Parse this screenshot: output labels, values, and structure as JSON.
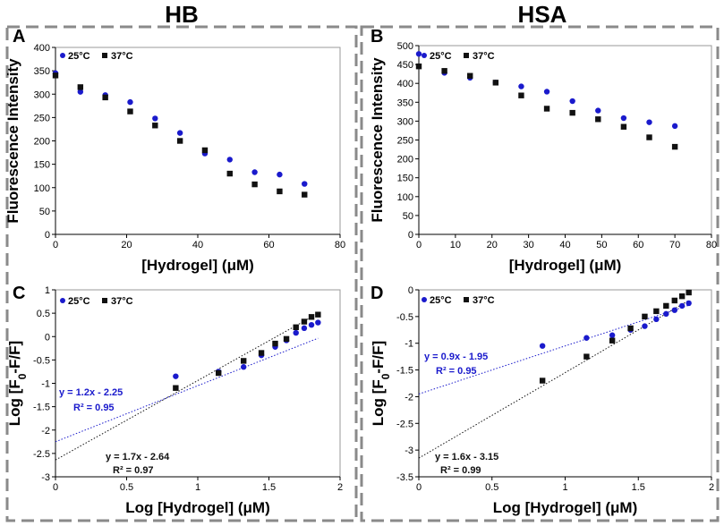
{
  "columns": [
    {
      "title": "HB"
    },
    {
      "title": "HSA"
    }
  ],
  "legend": {
    "series_25": "25°C",
    "series_37": "37°C"
  },
  "colors": {
    "s25": "#1a1acc",
    "s37": "#111111",
    "frame": "#8a8a8a"
  },
  "chart_data": [
    {
      "panel": "A",
      "type": "scatter",
      "column": "HB",
      "xlabel": "[Hydrogel] (μM)",
      "ylabel": "Fluorescence Intensity",
      "xlim": [
        0,
        80
      ],
      "ylim": [
        0,
        400
      ],
      "xticks": [
        0,
        20,
        40,
        60,
        80
      ],
      "xtick_labels": [
        "0",
        "20",
        "40",
        "60",
        "80"
      ],
      "yticks": [
        0,
        50,
        100,
        150,
        200,
        250,
        300,
        350,
        400
      ],
      "ytick_labels": [
        "0",
        "50",
        "100",
        "150",
        "200",
        "250",
        "300",
        "350",
        "400"
      ],
      "series": [
        {
          "name": "25°C",
          "marker": "circle",
          "color": "#1a1acc",
          "x": [
            0,
            7,
            14,
            21,
            28,
            35,
            42,
            49,
            56,
            63,
            70
          ],
          "y": [
            345,
            305,
            298,
            283,
            248,
            217,
            173,
            160,
            133,
            128,
            108
          ]
        },
        {
          "name": "37°C",
          "marker": "square",
          "color": "#111111",
          "x": [
            0,
            7,
            14,
            21,
            28,
            35,
            42,
            49,
            56,
            63,
            70
          ],
          "y": [
            340,
            315,
            293,
            263,
            233,
            200,
            180,
            130,
            107,
            92,
            85
          ]
        }
      ]
    },
    {
      "panel": "B",
      "type": "scatter",
      "column": "HSA",
      "xlabel": "[Hydrogel] (μM)",
      "ylabel": "Fluorescence Intensity",
      "xlim": [
        0,
        80
      ],
      "ylim": [
        0,
        500
      ],
      "xticks": [
        0,
        10,
        20,
        30,
        40,
        50,
        60,
        70,
        80
      ],
      "xtick_labels": [
        "0",
        "10",
        "20",
        "30",
        "40",
        "50",
        "60",
        "70",
        "80"
      ],
      "yticks": [
        0,
        50,
        100,
        150,
        200,
        250,
        300,
        350,
        400,
        450,
        500
      ],
      "ytick_labels": [
        "0",
        "50",
        "100",
        "150",
        "200",
        "250",
        "300",
        "350",
        "400",
        "450",
        "500"
      ],
      "series": [
        {
          "name": "25°C",
          "marker": "circle",
          "color": "#1a1acc",
          "x": [
            0,
            7,
            14,
            21,
            28,
            35,
            42,
            49,
            56,
            63,
            70
          ],
          "y": [
            478,
            428,
            415,
            402,
            392,
            378,
            353,
            328,
            308,
            297,
            287
          ]
        },
        {
          "name": "37°C",
          "marker": "square",
          "color": "#111111",
          "x": [
            0,
            7,
            14,
            21,
            28,
            35,
            42,
            49,
            56,
            63,
            70
          ],
          "y": [
            445,
            433,
            420,
            402,
            368,
            333,
            322,
            305,
            285,
            257,
            232
          ]
        }
      ]
    },
    {
      "panel": "C",
      "type": "scatter",
      "column": "HB",
      "xlabel": "Log [Hydrogel] (μM)",
      "ylabel": "Log [F0-F/F]",
      "xlim": [
        0,
        2
      ],
      "ylim": [
        -3,
        1
      ],
      "xticks": [
        0,
        0.5,
        1,
        1.5,
        2
      ],
      "xtick_labels": [
        "0",
        "0.5",
        "1",
        "1.5",
        "2"
      ],
      "yticks": [
        -3,
        -2.5,
        -2,
        -1.5,
        -1,
        -0.5,
        0,
        0.5,
        1
      ],
      "ytick_labels": [
        "-3",
        "-2.5",
        "-2",
        "-1.5",
        "-1",
        "-0.5",
        "0",
        "0.5",
        "1"
      ],
      "series": [
        {
          "name": "25°C",
          "marker": "circle",
          "color": "#1a1acc",
          "x": [
            0.845,
            1.146,
            1.322,
            1.447,
            1.544,
            1.623,
            1.69,
            1.748,
            1.799,
            1.845
          ],
          "y": [
            -0.85,
            -0.75,
            -0.65,
            -0.4,
            -0.22,
            -0.08,
            0.08,
            0.18,
            0.25,
            0.3
          ],
          "fit": {
            "slope": 1.2,
            "intercept": -2.25,
            "equation": "y = 1.2x - 2.25",
            "r2": "R² = 0.95"
          }
        },
        {
          "name": "37°C",
          "marker": "square",
          "color": "#111111",
          "x": [
            0.845,
            1.146,
            1.322,
            1.447,
            1.544,
            1.623,
            1.69,
            1.748,
            1.799,
            1.845
          ],
          "y": [
            -1.1,
            -0.78,
            -0.52,
            -0.35,
            -0.15,
            -0.05,
            0.2,
            0.32,
            0.42,
            0.47
          ],
          "fit": {
            "slope": 1.7,
            "intercept": -2.64,
            "equation": "y = 1.7x - 2.64",
            "r2": "R² = 0.97"
          }
        }
      ]
    },
    {
      "panel": "D",
      "type": "scatter",
      "column": "HSA",
      "xlabel": "Log [Hydrogel] (μM)",
      "ylabel": "Log [F0-F/F]",
      "xlim": [
        0,
        2
      ],
      "ylim": [
        -3.5,
        0
      ],
      "xticks": [
        0,
        0.5,
        1,
        1.5,
        2
      ],
      "xtick_labels": [
        "0",
        "0.5",
        "1",
        "1.5",
        "2"
      ],
      "yticks": [
        -3.5,
        -3,
        -2.5,
        -2,
        -1.5,
        -1,
        -0.5,
        0
      ],
      "ytick_labels": [
        "-3.5",
        "-3",
        "-2.5",
        "-2",
        "-1.5",
        "-1",
        "-0.5",
        "0"
      ],
      "series": [
        {
          "name": "25°C",
          "marker": "circle",
          "color": "#1a1acc",
          "x": [
            0.845,
            1.146,
            1.322,
            1.447,
            1.544,
            1.623,
            1.69,
            1.748,
            1.799,
            1.845
          ],
          "y": [
            -1.05,
            -0.9,
            -0.85,
            -0.75,
            -0.68,
            -0.55,
            -0.45,
            -0.38,
            -0.3,
            -0.25
          ],
          "fit": {
            "slope": 0.9,
            "intercept": -1.95,
            "equation": "y = 0.9x - 1.95",
            "r2": "R² = 0.95"
          }
        },
        {
          "name": "37°C",
          "marker": "square",
          "color": "#111111",
          "x": [
            0.845,
            1.146,
            1.322,
            1.447,
            1.544,
            1.623,
            1.69,
            1.748,
            1.799,
            1.845
          ],
          "y": [
            -1.7,
            -1.25,
            -0.95,
            -0.72,
            -0.5,
            -0.4,
            -0.3,
            -0.2,
            -0.12,
            -0.05
          ],
          "fit": {
            "slope": 1.6,
            "intercept": -3.15,
            "equation": "y = 1.6x - 3.15",
            "r2": "R² = 0.99"
          }
        }
      ]
    }
  ]
}
